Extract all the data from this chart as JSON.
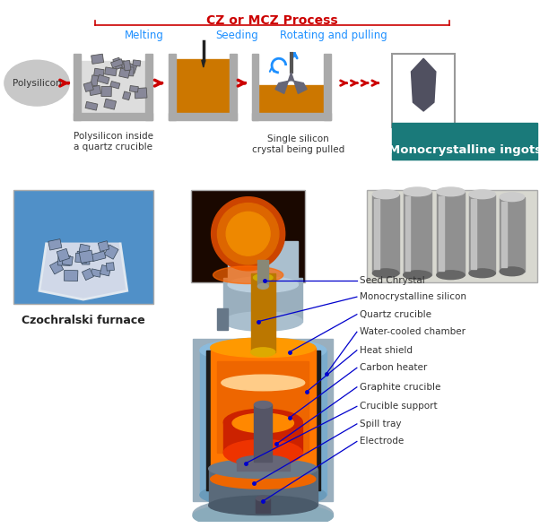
{
  "title": "CZ or MCZ Process",
  "title_color": "#CC0000",
  "bg_color": "#FFFFFF",
  "process_label_color": "#1E90FF",
  "captions": {
    "polysilicon": "Polysilicon",
    "box1": "Polysilicon inside\na quartz crucible",
    "box2": "Single silicon\ncrystal being pulled",
    "ingot_label": "Monocrystalline ingots",
    "ingot_label_bg": "#1A7A7A",
    "ingot_label_color": "#FFFFFF",
    "czochralski": "Czochralski furnace"
  },
  "furnace_labels": [
    "Seed Chrystal",
    "Monocrystalline silicon",
    "Quartz crucible",
    "Water-cooled chamber",
    "Heat shield",
    "Carbon heater",
    "Graphite crucible",
    "Crucible support",
    "Spill tray",
    "Electrode"
  ],
  "arrow_color": "#CC0000",
  "line_color": "#0000CD"
}
